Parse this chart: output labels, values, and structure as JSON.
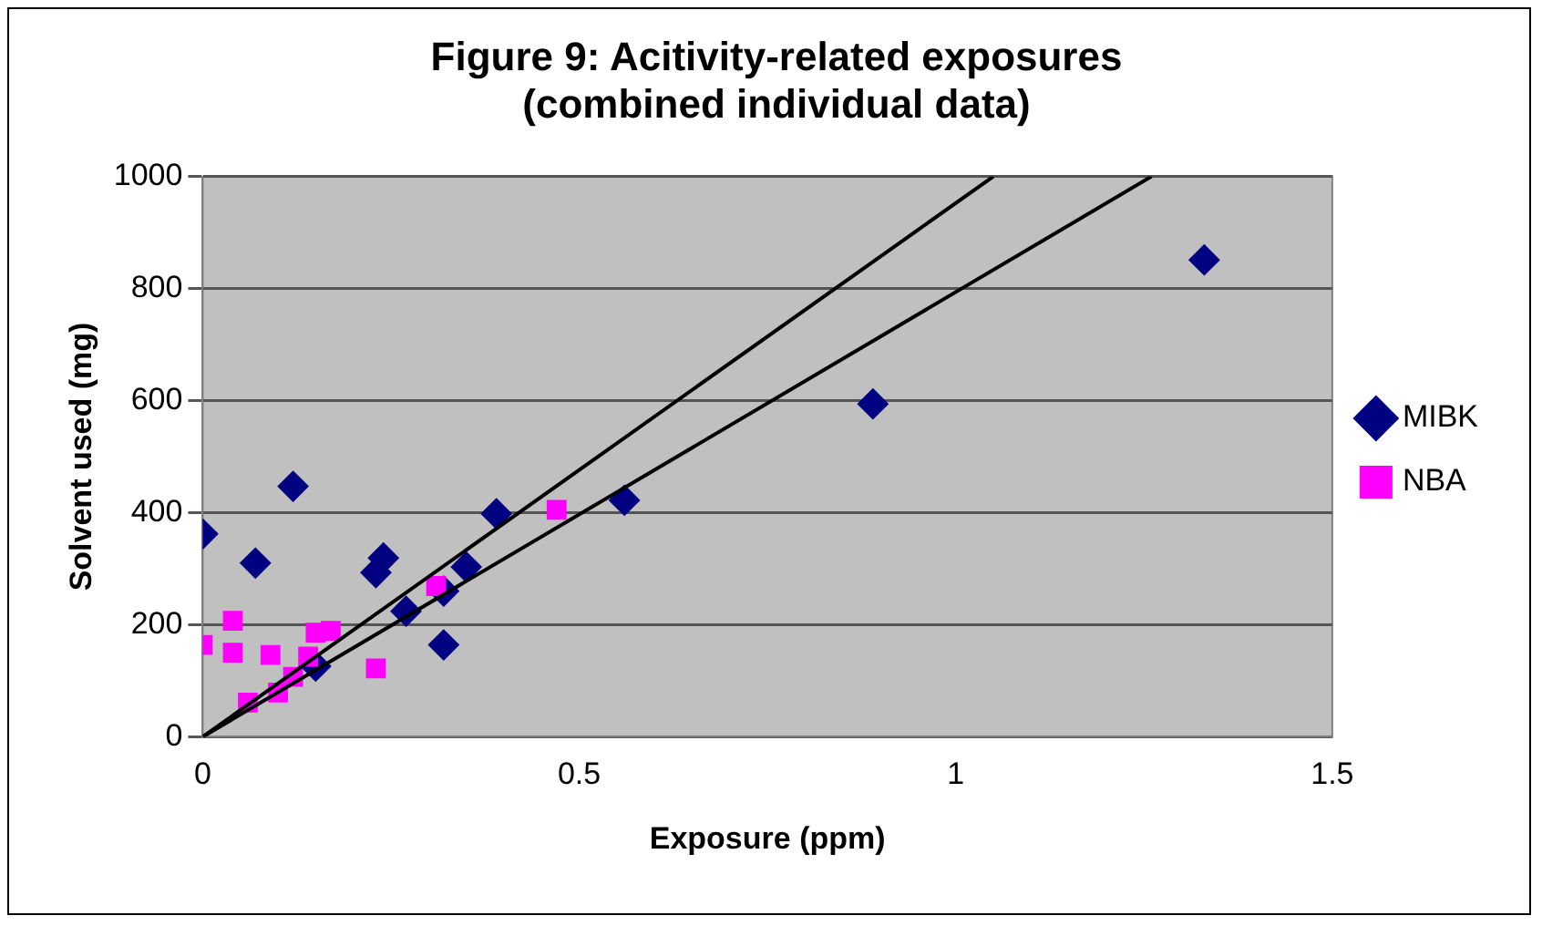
{
  "chart_data": {
    "type": "scatter",
    "title": "Figure 9: Acitivity-related exposures\n(combined individual data)",
    "xlabel": "Exposure (ppm)",
    "ylabel": "Solvent used (mg)",
    "xlim": [
      0,
      1.5
    ],
    "xticks": [
      0,
      0.5,
      1,
      1.5
    ],
    "ylim": [
      0,
      1000
    ],
    "yticks": [
      0,
      200,
      400,
      600,
      800,
      1000
    ],
    "grid": "y",
    "legend": "right",
    "series": [
      {
        "name": "MIBK",
        "color": "#000080",
        "marker": "diamond",
        "x": [
          0.0,
          0.12,
          0.07,
          0.24,
          0.23,
          0.39,
          0.35,
          0.32,
          0.27,
          0.32,
          0.15,
          0.56,
          0.89,
          1.33
        ],
        "values": [
          362,
          447,
          310,
          319,
          293,
          398,
          303,
          260,
          224,
          164,
          126,
          422,
          594,
          851
        ]
      },
      {
        "name": "NBA",
        "color": "#ff00ff",
        "marker": "square",
        "x": [
          0.0,
          0.04,
          0.04,
          0.09,
          0.06,
          0.1,
          0.12,
          0.15,
          0.17,
          0.14,
          0.23,
          0.31,
          0.47
        ],
        "values": [
          164,
          207,
          150,
          146,
          61,
          79,
          107,
          186,
          189,
          143,
          122,
          269,
          405
        ]
      },
      {
        "type": "line",
        "color": "#000000",
        "marker": "none",
        "x": [
          0,
          1.05
        ],
        "values": [
          0,
          1000
        ]
      },
      {
        "type": "line",
        "color": "#000000",
        "marker": "none",
        "x": [
          0,
          1.26
        ],
        "values": [
          0,
          1000
        ]
      }
    ]
  }
}
